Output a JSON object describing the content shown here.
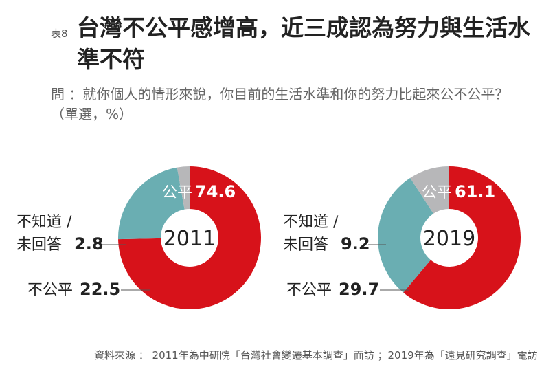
{
  "header": {
    "table_no": "表8",
    "title": "台灣不公平感增高，近三成認為努力與生活水準不符",
    "question": "問 ：就你個人的情形來說，你目前的生活水準和你的努力比起來公不公平？（單選，%）"
  },
  "colors": {
    "fair": "#d7121a",
    "unfair": "#6aaeb2",
    "unknown": "#b7b7b9"
  },
  "chart_data": [
    {
      "type": "pie",
      "subtype": "donut",
      "center_label": "2011",
      "slices": [
        {
          "key": "fair",
          "label": "公平",
          "value": 74.6,
          "value_text": "74.6",
          "label_color": "#ffffff"
        },
        {
          "key": "unfair",
          "label": "不公平",
          "value": 22.5,
          "value_text": "22.5",
          "label_color": "#222222"
        },
        {
          "key": "unknown",
          "label_line1": "不知道 /",
          "label_line2": "未回答",
          "value": 2.8,
          "value_text": "2.8",
          "label_color": "#222222"
        }
      ]
    },
    {
      "type": "pie",
      "subtype": "donut",
      "center_label": "2019",
      "slices": [
        {
          "key": "fair",
          "label": "公平",
          "value": 61.1,
          "value_text": "61.1",
          "label_color": "#ffffff"
        },
        {
          "key": "unfair",
          "label": "不公平",
          "value": 29.7,
          "value_text": "29.7",
          "label_color": "#222222"
        },
        {
          "key": "unknown",
          "label_line1": "不知道 /",
          "label_line2": "未回答",
          "value": 9.2,
          "value_text": "9.2",
          "label_color": "#222222"
        }
      ]
    }
  ],
  "footer": {
    "source": "資料來源 ： 2011年為中研院「台灣社會變遷基本調查」面訪 ；2019年為「遠見研究調查」電訪"
  }
}
